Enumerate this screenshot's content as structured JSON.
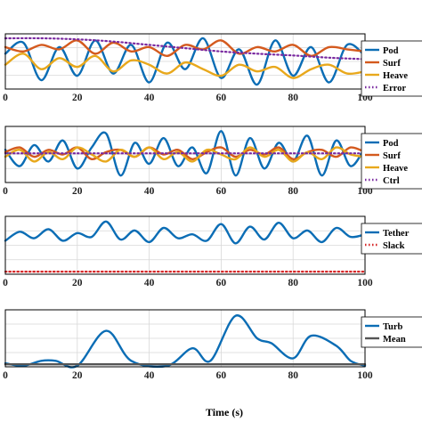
{
  "figure": {
    "xlabel": "Time (s)"
  },
  "colors": {
    "blue": "#0b6db5",
    "orange": "#d45a1e",
    "yellow": "#e8a81c",
    "purple": "#7a2aa0",
    "red": "#d62728",
    "gray": "#555555"
  },
  "chart_data": [
    {
      "type": "line",
      "xlim": [
        0,
        100
      ],
      "xticks": [
        "0",
        "20",
        "40",
        "60",
        "80",
        "100"
      ],
      "yticks": [],
      "grid": true,
      "legend": "right",
      "series": [
        {
          "name": "Pod",
          "color": "#0b6db5",
          "style": "solid",
          "x": [
            0,
            5,
            10,
            15,
            20,
            25,
            30,
            35,
            40,
            45,
            50,
            55,
            60,
            65,
            70,
            75,
            80,
            85,
            90,
            95,
            100
          ],
          "values": [
            0.3,
            0.8,
            -0.9,
            0.6,
            -0.7,
            0.9,
            -0.6,
            0.7,
            -1.0,
            0.8,
            -0.4,
            1.0,
            -0.8,
            0.5,
            -1.1,
            0.9,
            -0.7,
            0.6,
            -1.0,
            0.7,
            0.2
          ]
        },
        {
          "name": "Surf",
          "color": "#d45a1e",
          "style": "solid",
          "x": [
            0,
            5,
            10,
            15,
            20,
            25,
            30,
            35,
            40,
            45,
            50,
            55,
            60,
            65,
            70,
            75,
            80,
            85,
            90,
            95,
            100
          ],
          "values": [
            0.6,
            0.4,
            0.7,
            0.5,
            0.9,
            0.3,
            0.8,
            0.4,
            0.6,
            0.2,
            0.7,
            0.5,
            0.9,
            0.3,
            0.6,
            0.4,
            0.7,
            0.2,
            0.6,
            0.5,
            0.4
          ]
        },
        {
          "name": "Heave",
          "color": "#e8a81c",
          "style": "solid",
          "x": [
            0,
            5,
            10,
            15,
            20,
            25,
            30,
            35,
            40,
            45,
            50,
            55,
            60,
            65,
            70,
            75,
            80,
            85,
            90,
            95,
            100
          ],
          "values": [
            -0.2,
            0.3,
            -0.4,
            0.1,
            -0.3,
            0.2,
            -0.5,
            0.0,
            -0.2,
            -0.6,
            -0.1,
            -0.4,
            -0.7,
            -0.2,
            -0.5,
            -0.3,
            -0.8,
            -0.4,
            -0.2,
            -0.6,
            -0.5
          ]
        },
        {
          "name": "Error",
          "color": "#7a2aa0",
          "style": "dotted",
          "x": [
            0,
            10,
            20,
            30,
            40,
            50,
            60,
            70,
            80,
            90,
            100
          ],
          "values": [
            1.0,
            1.0,
            0.95,
            0.85,
            0.7,
            0.55,
            0.4,
            0.3,
            0.22,
            0.12,
            0.05
          ]
        }
      ]
    },
    {
      "type": "line",
      "xlim": [
        0,
        100
      ],
      "xticks": [
        "0",
        "20",
        "40",
        "60",
        "80",
        "100"
      ],
      "yticks": [],
      "grid": true,
      "legend": "right",
      "series": [
        {
          "name": "Pod",
          "color": "#0b6db5",
          "style": "solid",
          "x": [
            0,
            4,
            8,
            12,
            16,
            20,
            24,
            28,
            32,
            36,
            40,
            44,
            48,
            52,
            56,
            60,
            64,
            68,
            72,
            76,
            80,
            84,
            88,
            92,
            96,
            100
          ],
          "values": [
            0.2,
            -0.5,
            0.4,
            -0.3,
            0.6,
            -0.6,
            0.3,
            0.9,
            -0.9,
            0.5,
            -0.4,
            0.7,
            -0.5,
            0.3,
            -0.8,
            1.0,
            -0.9,
            0.7,
            -0.6,
            0.5,
            -0.3,
            0.8,
            -0.9,
            0.6,
            -0.5,
            0.3
          ]
        },
        {
          "name": "Surf",
          "color": "#d45a1e",
          "style": "solid",
          "x": [
            0,
            4,
            8,
            12,
            16,
            20,
            24,
            28,
            32,
            36,
            40,
            44,
            48,
            52,
            56,
            60,
            64,
            68,
            72,
            76,
            80,
            84,
            88,
            92,
            96,
            100
          ],
          "values": [
            0.1,
            0.3,
            -0.1,
            0.2,
            0.0,
            0.3,
            -0.2,
            0.1,
            0.2,
            -0.1,
            0.3,
            0.0,
            0.2,
            -0.2,
            0.1,
            0.3,
            -0.1,
            0.2,
            0.0,
            0.3,
            -0.2,
            0.1,
            0.2,
            -0.1,
            0.3,
            0.1
          ]
        },
        {
          "name": "Heave",
          "color": "#e8a81c",
          "style": "solid",
          "x": [
            0,
            4,
            8,
            12,
            16,
            20,
            24,
            28,
            32,
            36,
            40,
            44,
            48,
            52,
            56,
            60,
            64,
            68,
            72,
            76,
            80,
            84,
            88,
            92,
            96,
            100
          ],
          "values": [
            -0.1,
            0.2,
            -0.3,
            0.1,
            -0.2,
            0.3,
            0.0,
            -0.3,
            0.2,
            -0.1,
            0.3,
            -0.2,
            0.1,
            -0.3,
            0.2,
            0.0,
            -0.2,
            0.3,
            -0.1,
            0.2,
            -0.3,
            0.1,
            -0.2,
            0.3,
            0.0,
            -0.1
          ]
        },
        {
          "name": "Ctrl",
          "color": "#7a2aa0",
          "style": "dotted",
          "x": [
            0,
            20,
            40,
            60,
            80,
            100
          ],
          "values": [
            0.05,
            0.05,
            0.05,
            0.05,
            0.05,
            0.05
          ]
        }
      ]
    },
    {
      "type": "line",
      "xlim": [
        0,
        100
      ],
      "xticks": [
        "0",
        "20",
        "40",
        "60",
        "80",
        "100"
      ],
      "yticks": [],
      "grid": true,
      "legend": "right",
      "series": [
        {
          "name": "Tether",
          "color": "#0b6db5",
          "style": "solid",
          "x": [
            0,
            4,
            8,
            12,
            16,
            20,
            24,
            28,
            32,
            36,
            40,
            44,
            48,
            52,
            56,
            60,
            64,
            68,
            72,
            76,
            80,
            84,
            88,
            92,
            96,
            100
          ],
          "values": [
            0.2,
            0.55,
            0.3,
            0.65,
            0.2,
            0.5,
            0.35,
            0.95,
            0.25,
            0.6,
            0.15,
            0.7,
            0.3,
            0.45,
            0.2,
            0.85,
            0.1,
            0.75,
            0.25,
            0.9,
            0.3,
            0.6,
            0.15,
            0.7,
            0.35,
            0.45
          ]
        },
        {
          "name": "Slack",
          "color": "#d62728",
          "style": "dotted",
          "x": [
            0,
            100
          ],
          "values": [
            -1.0,
            -1.0
          ]
        }
      ]
    },
    {
      "type": "line",
      "xlim": [
        0,
        100
      ],
      "xticks": [
        "0",
        "20",
        "40",
        "60",
        "80",
        "100"
      ],
      "yticks": [],
      "grid": true,
      "legend": "right",
      "series": [
        {
          "name": "Turb",
          "color": "#0b6db5",
          "style": "solid",
          "x": [
            0,
            5,
            10,
            14,
            20,
            28,
            35,
            45,
            52,
            57,
            64,
            70,
            74,
            80,
            85,
            92,
            96,
            100
          ],
          "values": [
            0.05,
            0.0,
            0.1,
            0.1,
            0.0,
            0.7,
            0.1,
            0.0,
            0.35,
            0.1,
            1.0,
            0.55,
            0.45,
            0.15,
            0.6,
            0.4,
            0.1,
            0.0
          ]
        },
        {
          "name": "Mean",
          "color": "#555555",
          "style": "solid",
          "x": [
            0,
            100
          ],
          "values": [
            0.03,
            0.03
          ]
        }
      ]
    }
  ]
}
